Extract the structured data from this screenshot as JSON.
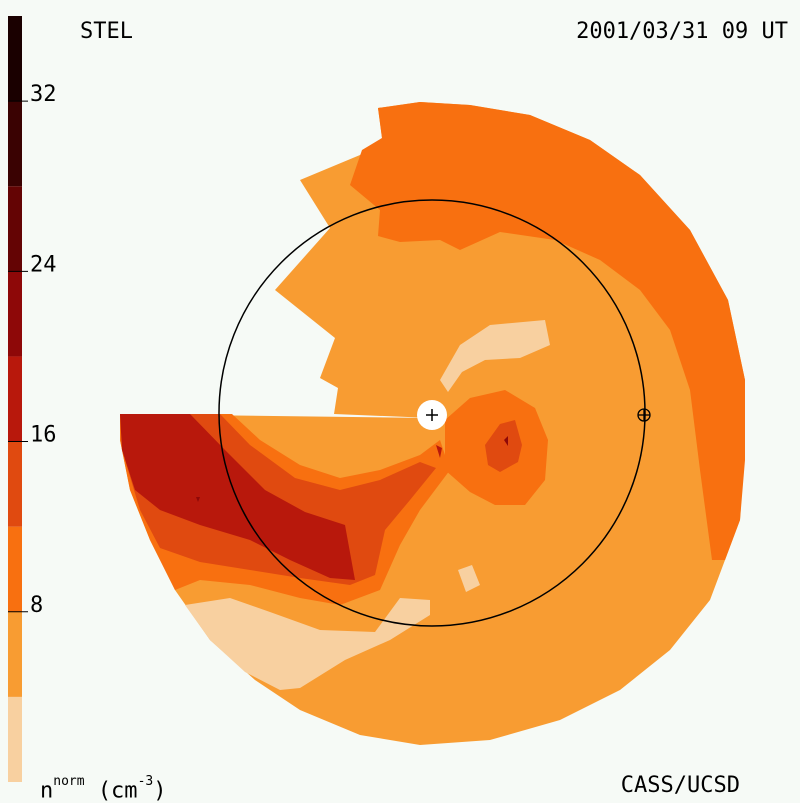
{
  "header": {
    "title": "STEL",
    "date": "2001/03/31 09 UT"
  },
  "footer": {
    "credit": "CASS/UCSD",
    "unit_base": "n",
    "unit_sup": "norm",
    "unit_rest": "(cm",
    "unit_exp": "-3",
    "unit_close": ")"
  },
  "chart_data": {
    "type": "heatmap",
    "colorbar": {
      "ticks": [
        8,
        16,
        24,
        32
      ],
      "range": [
        0,
        36
      ],
      "levels": [
        {
          "min": 0,
          "max": 4,
          "color": "#f8d0a0"
        },
        {
          "min": 4,
          "max": 8,
          "color": "#f89c32"
        },
        {
          "min": 8,
          "max": 12,
          "color": "#f87010"
        },
        {
          "min": 12,
          "max": 16,
          "color": "#e04a10"
        },
        {
          "min": 16,
          "max": 20,
          "color": "#b8180c"
        },
        {
          "min": 20,
          "max": 24,
          "color": "#8e0808"
        },
        {
          "min": 24,
          "max": 28,
          "color": "#640404"
        },
        {
          "min": 28,
          "max": 32,
          "color": "#3a0202"
        },
        {
          "min": 32,
          "max": 36,
          "color": "#1a0000"
        }
      ]
    },
    "markers": [
      {
        "name": "sun",
        "symbol": "+"
      },
      {
        "name": "earth",
        "symbol": "⊕"
      }
    ],
    "reference_circle": "1 AU"
  }
}
